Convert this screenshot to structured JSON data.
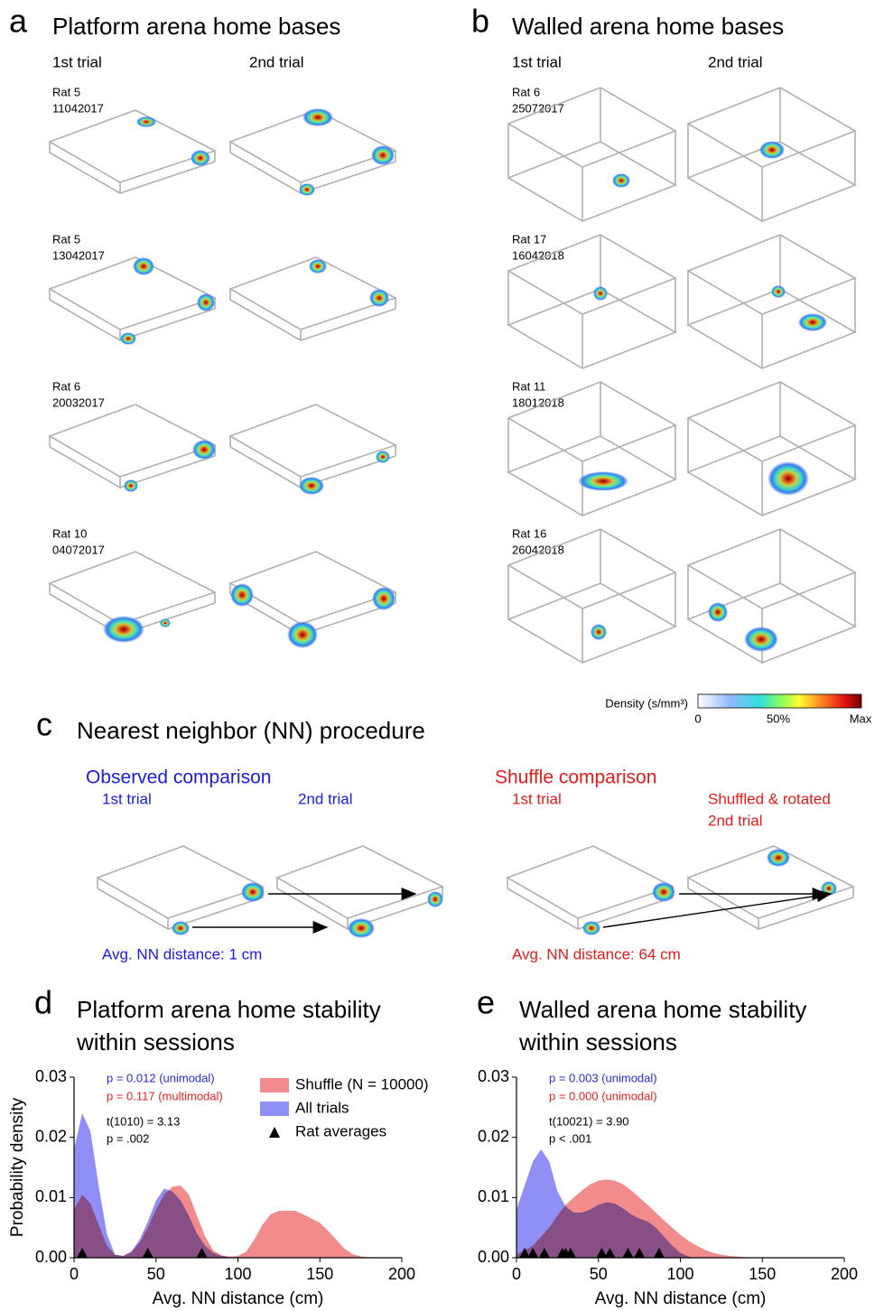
{
  "panels": {
    "a": {
      "letter": "a",
      "title": "Platform arena home bases",
      "columns": [
        "1st trial",
        "2nd trial"
      ],
      "rats": [
        [
          "Rat 5",
          "11042017"
        ],
        [
          "Rat 5",
          "13042017"
        ],
        [
          "Rat 6",
          "20032017"
        ],
        [
          "Rat 10",
          "04072017"
        ]
      ]
    },
    "b": {
      "letter": "b",
      "title": "Walled arena home bases",
      "columns": [
        "1st trial",
        "2nd trial"
      ],
      "rats": [
        [
          "Rat 6",
          "25072017"
        ],
        [
          "Rat 17",
          "16042018"
        ],
        [
          "Rat 11",
          "18012018"
        ],
        [
          "Rat 16",
          "26042018"
        ]
      ]
    },
    "colorbar": {
      "label": "Density (s/mm³)",
      "ticks": [
        "0",
        "50%",
        "Max"
      ]
    },
    "c": {
      "letter": "c",
      "title": "Nearest neighbor (NN) procedure",
      "observed": {
        "title": "Observed comparison",
        "first": "1st trial",
        "second": "2nd trial",
        "result": "Avg. NN distance: 1 cm"
      },
      "shuffle": {
        "title": "Shuffle comparison",
        "first": "1st trial",
        "second": [
          "Shuffled & rotated",
          "2nd trial"
        ],
        "result": "Avg. NN distance: 64 cm"
      }
    }
  },
  "chart_data": [
    {
      "type": "area",
      "panel": "d",
      "title": [
        "Platform arena home stability",
        "within sessions"
      ],
      "xlabel": "Avg. NN distance (cm)",
      "ylabel": "Probability density",
      "x": [
        0,
        5,
        10,
        15,
        20,
        25,
        30,
        35,
        40,
        45,
        50,
        55,
        60,
        65,
        70,
        75,
        80,
        85,
        90,
        95,
        100,
        105,
        110,
        115,
        120,
        125,
        130,
        135,
        140,
        145,
        150,
        155,
        160,
        165,
        170,
        175,
        180,
        185,
        190,
        195,
        200
      ],
      "series": [
        {
          "name": "Shuffle (N = 10000)",
          "color": "#f28b8b",
          "values": [
            0.008,
            0.0105,
            0.009,
            0.0055,
            0.002,
            0.0005,
            0.0003,
            0.001,
            0.0025,
            0.005,
            0.008,
            0.0105,
            0.0118,
            0.012,
            0.0105,
            0.007,
            0.0035,
            0.0012,
            0.0004,
            0.0002,
            0.0003,
            0.001,
            0.003,
            0.0055,
            0.0072,
            0.0078,
            0.0078,
            0.0078,
            0.0072,
            0.0065,
            0.0058,
            0.0045,
            0.003,
            0.0015,
            0.0006,
            0.0002,
            0.0001,
            0,
            0,
            0,
            0
          ]
        },
        {
          "name": "All trials",
          "color": "#8f8ff5",
          "values": [
            0.018,
            0.024,
            0.021,
            0.012,
            0.004,
            0.0005,
            0.0003,
            0.001,
            0.003,
            0.006,
            0.0095,
            0.0115,
            0.011,
            0.0095,
            0.007,
            0.004,
            0.002,
            0.0008,
            0.0003,
            0.0001,
            0,
            0,
            0,
            0,
            0,
            0,
            0,
            0,
            0,
            0,
            0,
            0,
            0,
            0,
            0,
            0,
            0,
            0,
            0,
            0,
            0
          ]
        }
      ],
      "markers": {
        "name": "Rat averages",
        "color": "#000000",
        "x": [
          5,
          45,
          78
        ]
      },
      "annotations": [
        {
          "text": "p = 0.012 (unimodal)",
          "color": "#2b2bd9"
        },
        {
          "text": "p = 0.117 (multimodal)",
          "color": "#e02424"
        },
        {
          "text": "t(1010) = 3.13",
          "color": "#000000"
        },
        {
          "text": "p = .002",
          "color": "#000000"
        }
      ],
      "xlim": [
        0,
        200
      ],
      "xticks": [
        0,
        50,
        100,
        150,
        200
      ],
      "ylim": [
        0,
        0.03
      ],
      "yticks": [
        {
          "value": 0,
          "label": "0.00"
        },
        0.01,
        0.02,
        0.03
      ],
      "legend": "upper right"
    },
    {
      "type": "area",
      "panel": "e",
      "title": [
        "Walled arena home stability",
        "within sessions"
      ],
      "xlabel": "Avg. NN distance (cm)",
      "x": [
        0,
        5,
        10,
        15,
        20,
        25,
        30,
        35,
        40,
        45,
        50,
        55,
        60,
        65,
        70,
        75,
        80,
        85,
        90,
        95,
        100,
        105,
        110,
        115,
        120,
        125,
        130,
        135,
        140,
        145,
        150,
        155,
        160,
        165,
        170,
        175,
        180,
        185,
        190,
        195,
        200
      ],
      "series": [
        {
          "color": "#f28b8b",
          "values": [
            0.0005,
            0.0012,
            0.002,
            0.0035,
            0.005,
            0.007,
            0.0088,
            0.01,
            0.0112,
            0.0122,
            0.0128,
            0.013,
            0.0128,
            0.0122,
            0.0112,
            0.01,
            0.0088,
            0.0075,
            0.0062,
            0.005,
            0.0038,
            0.0028,
            0.002,
            0.0013,
            0.0008,
            0.0005,
            0.0003,
            0.0002,
            0.0001,
            0,
            0,
            0,
            0,
            0,
            0,
            0,
            0,
            0,
            0,
            0,
            0
          ]
        },
        {
          "color": "#8f8ff5",
          "values": [
            0.008,
            0.012,
            0.016,
            0.018,
            0.016,
            0.011,
            0.0085,
            0.0075,
            0.0075,
            0.008,
            0.0088,
            0.0092,
            0.009,
            0.0082,
            0.0072,
            0.0065,
            0.006,
            0.005,
            0.0035,
            0.002,
            0.0008,
            0.0002,
            0,
            0,
            0,
            0,
            0,
            0,
            0,
            0,
            0,
            0,
            0,
            0,
            0,
            0,
            0,
            0,
            0,
            0,
            0
          ]
        }
      ],
      "markers": {
        "color": "#000000",
        "x": [
          5,
          10,
          17,
          28,
          30,
          33,
          52,
          57,
          68,
          75,
          87
        ]
      },
      "annotations": [
        {
          "text": "p = 0.003 (unimodal)",
          "color": "#2b2bd9"
        },
        {
          "text": "p = 0.000 (unimodal)",
          "color": "#e02424"
        },
        {
          "text": "t(10021) = 3.90",
          "color": "#000000"
        },
        {
          "text": "p < .001",
          "color": "#000000"
        }
      ],
      "xlim": [
        0,
        200
      ],
      "xticks": [
        0,
        50,
        100,
        150,
        200
      ],
      "ylim": [
        0,
        0.03
      ],
      "yticks": [
        {
          "value": 0,
          "label": "0.00"
        },
        0.01,
        0.02,
        0.03
      ]
    }
  ]
}
